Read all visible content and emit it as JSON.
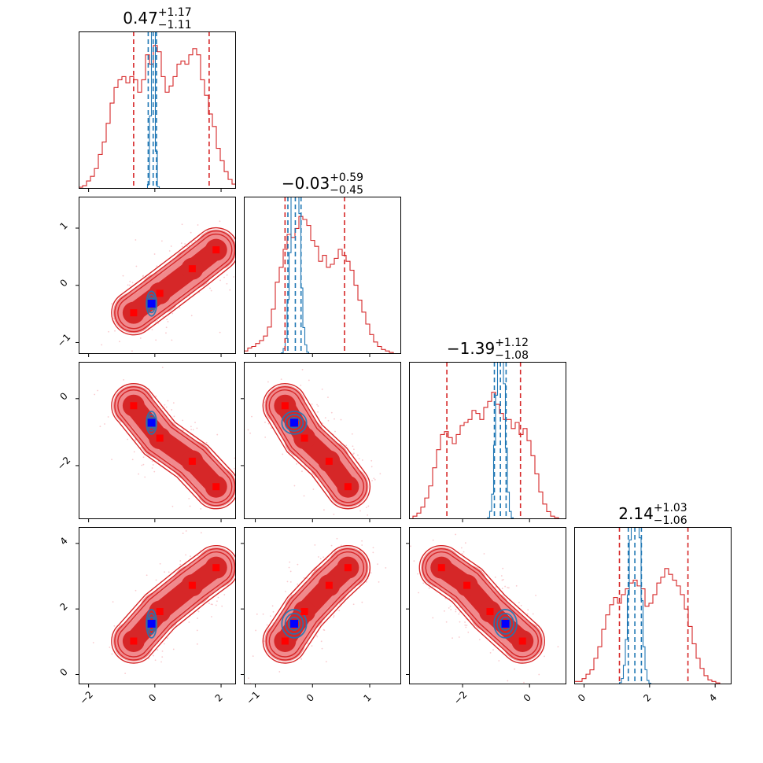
{
  "figure": {
    "type": "corner-plot"
  },
  "colors": {
    "samples": "#d62728",
    "posterior": "#1f77b4",
    "truth": "#0000ff",
    "modes": "#ff0000",
    "fill_dark": "#d62728",
    "fill_light": "#f08a8d"
  },
  "chart_data": {
    "type": "corner",
    "parameters": [
      {
        "index": 0,
        "range": [
          -2.3,
          2.45
        ],
        "ticks": [
          -2,
          0,
          2
        ],
        "tick_labels": [
          "-2",
          "0",
          "2"
        ]
      },
      {
        "index": 1,
        "range": [
          -1.2,
          1.55
        ],
        "ticks": [
          -1,
          0,
          1
        ],
        "tick_labels": [
          "-1",
          "0",
          "1"
        ]
      },
      {
        "index": 2,
        "range": [
          -3.6,
          1.1
        ],
        "ticks": [
          -2,
          0
        ],
        "tick_labels": [
          "-2",
          "0"
        ]
      },
      {
        "index": 3,
        "range": [
          -0.3,
          4.5
        ],
        "ticks": [
          0,
          2,
          4
        ],
        "tick_labels": [
          "0",
          "2",
          "4"
        ]
      }
    ],
    "titles": [
      {
        "median": "0.47",
        "plus": "+1.17",
        "minus": "−1.11"
      },
      {
        "median": "−0.03",
        "plus": "+0.59",
        "minus": "−0.45"
      },
      {
        "median": "−1.39",
        "plus": "+1.12",
        "minus": "−1.08"
      },
      {
        "median": "2.14",
        "plus": "+1.03",
        "minus": "−1.06"
      }
    ],
    "quantiles_red": [
      [
        -0.64,
        1.64
      ],
      [
        -0.48,
        0.56
      ],
      [
        -2.47,
        -0.27
      ],
      [
        1.08,
        3.17
      ]
    ],
    "quantiles_blue": [
      [
        -0.2,
        -0.05,
        0.05
      ],
      [
        -0.43,
        -0.3,
        -0.2
      ],
      [
        -1.05,
        -0.87,
        -0.7
      ],
      [
        1.35,
        1.55,
        1.75
      ]
    ],
    "truth_point": [
      -0.1,
      -0.32,
      -0.72,
      1.55
    ],
    "mode_points": [
      [
        -0.64,
        -0.48,
        -0.21,
        1.02
      ],
      [
        0.15,
        -0.14,
        -1.18,
        1.92
      ],
      [
        1.13,
        0.29,
        -1.87,
        2.72
      ],
      [
        1.85,
        0.62,
        -2.63,
        3.26
      ]
    ],
    "red_histograms": [
      [
        0.01,
        0.02,
        0.05,
        0.08,
        0.13,
        0.22,
        0.3,
        0.42,
        0.55,
        0.65,
        0.7,
        0.72,
        0.68,
        0.72,
        0.7,
        0.62,
        0.7,
        0.86,
        0.8,
        0.92,
        0.88,
        0.72,
        0.62,
        0.66,
        0.72,
        0.8,
        0.82,
        0.8,
        0.86,
        0.9,
        0.86,
        0.7,
        0.6,
        0.48,
        0.4,
        0.26,
        0.18,
        0.11,
        0.06,
        0.03
      ],
      [
        0.02,
        0.04,
        0.05,
        0.07,
        0.09,
        0.12,
        0.18,
        0.3,
        0.48,
        0.58,
        0.7,
        0.8,
        0.78,
        0.84,
        0.92,
        0.9,
        0.86,
        0.76,
        0.72,
        0.62,
        0.66,
        0.58,
        0.6,
        0.64,
        0.7,
        0.66,
        0.62,
        0.56,
        0.46,
        0.36,
        0.28,
        0.2,
        0.13,
        0.08,
        0.05,
        0.03,
        0.02,
        0.01,
        0.0,
        0.0
      ],
      [
        0.0,
        0.02,
        0.04,
        0.08,
        0.14,
        0.22,
        0.34,
        0.46,
        0.56,
        0.58,
        0.54,
        0.5,
        0.56,
        0.62,
        0.64,
        0.66,
        0.72,
        0.7,
        0.66,
        0.74,
        0.78,
        0.84,
        0.76,
        0.7,
        0.66,
        0.66,
        0.6,
        0.64,
        0.56,
        0.6,
        0.52,
        0.42,
        0.3,
        0.18,
        0.1,
        0.05,
        0.02,
        0.01,
        0.0,
        0.0
      ],
      [
        0.02,
        0.02,
        0.04,
        0.07,
        0.1,
        0.18,
        0.26,
        0.38,
        0.48,
        0.55,
        0.6,
        0.56,
        0.62,
        0.66,
        0.7,
        0.72,
        0.68,
        0.66,
        0.54,
        0.56,
        0.62,
        0.7,
        0.74,
        0.8,
        0.76,
        0.72,
        0.68,
        0.62,
        0.52,
        0.4,
        0.28,
        0.18,
        0.11,
        0.06,
        0.03,
        0.02,
        0.01,
        0.0,
        0.0,
        0.0
      ]
    ],
    "red_hist_scale": [
      0.99,
      0.95,
      0.96,
      0.92
    ],
    "blue_hist_sigma": [
      0.05,
      0.07,
      0.11,
      0.14
    ]
  }
}
